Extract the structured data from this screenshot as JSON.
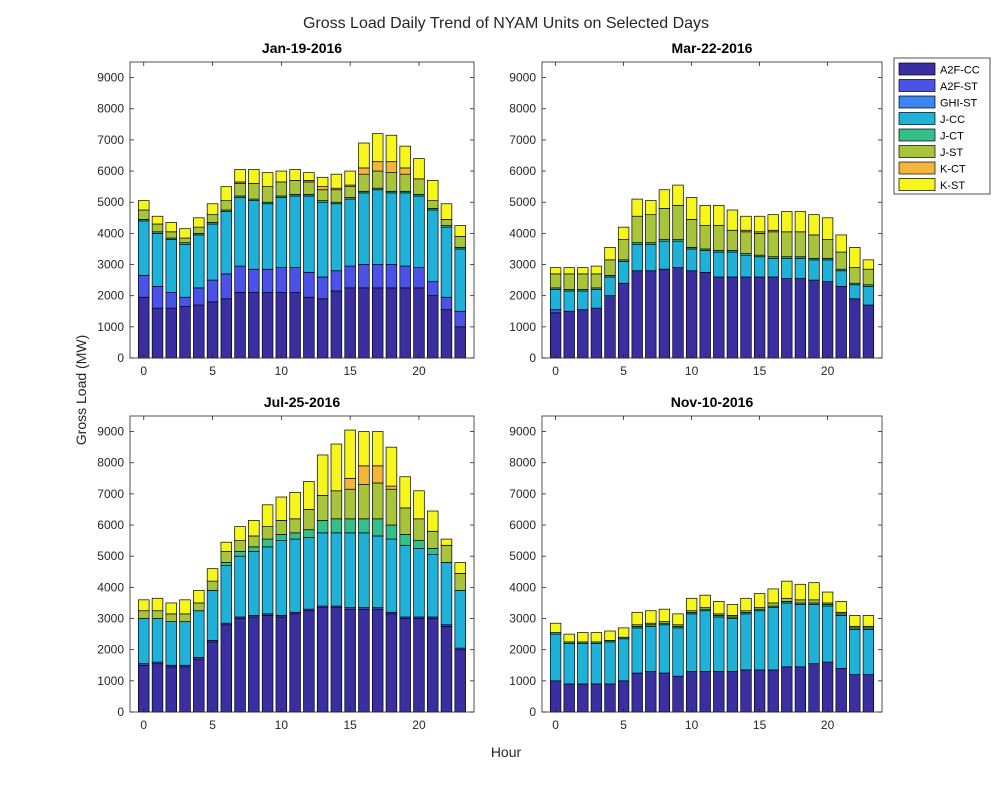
{
  "figure": {
    "title": "Gross Load Daily Trend of NYAM Units on Selected Days",
    "xlabel": "Hour",
    "ylabel": "Gross Load (MW)"
  },
  "legend": {
    "placement": "outside-right",
    "entries": [
      {
        "name": "A2F-CC",
        "color": "#3a2fa0"
      },
      {
        "name": "A2F-ST",
        "color": "#4a52e8"
      },
      {
        "name": "GHI-ST",
        "color": "#3b86f0"
      },
      {
        "name": "J-CC",
        "color": "#1fb1d8"
      },
      {
        "name": "J-CT",
        "color": "#35c08a"
      },
      {
        "name": "J-ST",
        "color": "#a8c43a"
      },
      {
        "name": "K-CT",
        "color": "#f4b63a"
      },
      {
        "name": "K-ST",
        "color": "#f6f51c"
      }
    ]
  },
  "chart_data": [
    {
      "type": "bar",
      "stacked": true,
      "title": "Jan-19-2016",
      "x": [
        0,
        1,
        2,
        3,
        4,
        5,
        6,
        7,
        8,
        9,
        10,
        11,
        12,
        13,
        14,
        15,
        16,
        17,
        18,
        19,
        20,
        21,
        22,
        23
      ],
      "xticks": [
        0,
        5,
        10,
        15,
        20
      ],
      "xlim": [
        -1,
        24
      ],
      "ylim": [
        0,
        9500
      ],
      "yticks": [
        0,
        1000,
        2000,
        3000,
        4000,
        5000,
        6000,
        7000,
        8000,
        9000
      ],
      "series": [
        {
          "name": "A2F-CC",
          "values": [
            1950,
            1600,
            1600,
            1650,
            1700,
            1800,
            1900,
            2100,
            2100,
            2100,
            2100,
            2100,
            1950,
            1900,
            2150,
            2250,
            2250,
            2250,
            2250,
            2250,
            2250,
            2000,
            1550,
            1000
          ]
        },
        {
          "name": "A2F-ST",
          "values": [
            700,
            700,
            500,
            300,
            550,
            700,
            800,
            850,
            750,
            750,
            800,
            800,
            800,
            700,
            650,
            700,
            750,
            750,
            750,
            700,
            650,
            450,
            400,
            500
          ]
        },
        {
          "name": "GHI-ST",
          "values": [
            0,
            0,
            0,
            0,
            0,
            0,
            0,
            0,
            0,
            0,
            0,
            0,
            0,
            0,
            0,
            0,
            0,
            0,
            0,
            0,
            0,
            0,
            0,
            0
          ]
        },
        {
          "name": "J-CC",
          "values": [
            1750,
            1700,
            1700,
            1700,
            1700,
            1800,
            2000,
            2200,
            2200,
            2100,
            2250,
            2300,
            2450,
            2400,
            2150,
            2150,
            2300,
            2400,
            2300,
            2350,
            2300,
            2300,
            2250,
            2000
          ]
        },
        {
          "name": "J-CT",
          "values": [
            50,
            50,
            50,
            50,
            50,
            50,
            50,
            50,
            50,
            50,
            50,
            50,
            50,
            50,
            50,
            50,
            50,
            50,
            50,
            50,
            50,
            50,
            50,
            50
          ]
        },
        {
          "name": "J-ST",
          "values": [
            300,
            250,
            200,
            150,
            200,
            250,
            300,
            400,
            500,
            500,
            450,
            450,
            400,
            350,
            400,
            350,
            550,
            550,
            600,
            550,
            500,
            250,
            200,
            350
          ]
        },
        {
          "name": "K-CT",
          "values": [
            0,
            0,
            0,
            0,
            0,
            0,
            0,
            50,
            0,
            0,
            0,
            0,
            50,
            100,
            50,
            50,
            200,
            300,
            350,
            200,
            0,
            0,
            0,
            0
          ]
        },
        {
          "name": "K-ST",
          "values": [
            300,
            250,
            300,
            300,
            300,
            350,
            450,
            400,
            450,
            450,
            350,
            350,
            250,
            300,
            450,
            450,
            800,
            900,
            850,
            700,
            650,
            650,
            500,
            350
          ]
        }
      ]
    },
    {
      "type": "bar",
      "stacked": true,
      "title": "Mar-22-2016",
      "x": [
        0,
        1,
        2,
        3,
        4,
        5,
        6,
        7,
        8,
        9,
        10,
        11,
        12,
        13,
        14,
        15,
        16,
        17,
        18,
        19,
        20,
        21,
        22,
        23
      ],
      "xticks": [
        0,
        5,
        10,
        15,
        20
      ],
      "xlim": [
        -1,
        24
      ],
      "ylim": [
        0,
        9500
      ],
      "yticks": [
        0,
        1000,
        2000,
        3000,
        4000,
        5000,
        6000,
        7000,
        8000,
        9000
      ],
      "series": [
        {
          "name": "A2F-CC",
          "values": [
            1450,
            1500,
            1550,
            1600,
            2000,
            2400,
            2800,
            2800,
            2850,
            2900,
            2800,
            2750,
            2600,
            2600,
            2600,
            2600,
            2600,
            2550,
            2550,
            2500,
            2450,
            2300,
            1900,
            1700
          ]
        },
        {
          "name": "A2F-ST",
          "values": [
            100,
            0,
            0,
            0,
            0,
            0,
            0,
            0,
            0,
            0,
            0,
            0,
            0,
            0,
            0,
            0,
            0,
            0,
            0,
            0,
            0,
            0,
            0,
            0
          ]
        },
        {
          "name": "GHI-ST",
          "values": [
            0,
            0,
            0,
            0,
            0,
            0,
            0,
            0,
            0,
            0,
            0,
            0,
            0,
            0,
            0,
            0,
            0,
            0,
            0,
            0,
            0,
            0,
            0,
            0
          ]
        },
        {
          "name": "J-CC",
          "values": [
            650,
            650,
            600,
            600,
            600,
            700,
            850,
            850,
            900,
            850,
            700,
            700,
            800,
            800,
            700,
            650,
            600,
            650,
            650,
            650,
            700,
            500,
            450,
            600
          ]
        },
        {
          "name": "J-CT",
          "values": [
            50,
            50,
            50,
            50,
            50,
            50,
            50,
            50,
            50,
            50,
            50,
            50,
            50,
            50,
            50,
            50,
            50,
            50,
            50,
            50,
            50,
            50,
            50,
            50
          ]
        },
        {
          "name": "J-ST",
          "values": [
            450,
            500,
            500,
            450,
            500,
            650,
            850,
            900,
            1000,
            1100,
            900,
            750,
            800,
            650,
            700,
            700,
            800,
            800,
            800,
            750,
            600,
            550,
            500,
            500
          ]
        },
        {
          "name": "K-CT",
          "values": [
            0,
            0,
            0,
            0,
            0,
            0,
            0,
            0,
            0,
            0,
            0,
            0,
            0,
            0,
            50,
            50,
            50,
            0,
            0,
            0,
            0,
            0,
            0,
            0
          ]
        },
        {
          "name": "K-ST",
          "values": [
            200,
            200,
            200,
            250,
            400,
            400,
            550,
            450,
            600,
            650,
            700,
            650,
            650,
            650,
            450,
            500,
            500,
            650,
            650,
            650,
            700,
            550,
            650,
            300
          ]
        }
      ]
    },
    {
      "type": "bar",
      "stacked": true,
      "title": "Jul-25-2016",
      "x": [
        0,
        1,
        2,
        3,
        4,
        5,
        6,
        7,
        8,
        9,
        10,
        11,
        12,
        13,
        14,
        15,
        16,
        17,
        18,
        19,
        20,
        21,
        22,
        23
      ],
      "xticks": [
        0,
        5,
        10,
        15,
        20
      ],
      "xlim": [
        -1,
        24
      ],
      "ylim": [
        0,
        9500
      ],
      "yticks": [
        0,
        1000,
        2000,
        3000,
        4000,
        5000,
        6000,
        7000,
        8000,
        9000
      ],
      "series": [
        {
          "name": "A2F-CC",
          "values": [
            1500,
            1550,
            1450,
            1450,
            1700,
            2250,
            2800,
            3000,
            3050,
            3100,
            3050,
            3150,
            3250,
            3350,
            3350,
            3300,
            3300,
            3300,
            3150,
            3000,
            3000,
            3000,
            2750,
            2000
          ]
        },
        {
          "name": "A2F-ST",
          "values": [
            50,
            50,
            50,
            50,
            50,
            50,
            50,
            50,
            50,
            50,
            50,
            50,
            50,
            50,
            50,
            50,
            50,
            50,
            50,
            50,
            50,
            50,
            50,
            50
          ]
        },
        {
          "name": "GHI-ST",
          "values": [
            0,
            0,
            0,
            0,
            0,
            0,
            0,
            0,
            0,
            0,
            0,
            0,
            0,
            0,
            0,
            0,
            0,
            0,
            0,
            0,
            0,
            0,
            0,
            0
          ]
        },
        {
          "name": "J-CC",
          "values": [
            1450,
            1400,
            1400,
            1400,
            1500,
            1600,
            1850,
            1950,
            2050,
            2150,
            2400,
            2350,
            2300,
            2350,
            2350,
            2400,
            2400,
            2300,
            2350,
            2300,
            2200,
            2000,
            2000,
            1850
          ]
        },
        {
          "name": "J-CT",
          "values": [
            0,
            0,
            0,
            0,
            0,
            0,
            100,
            150,
            150,
            250,
            200,
            200,
            250,
            400,
            450,
            450,
            450,
            550,
            450,
            350,
            250,
            200,
            0,
            0
          ]
        },
        {
          "name": "J-ST",
          "values": [
            250,
            250,
            250,
            250,
            250,
            300,
            350,
            350,
            350,
            400,
            450,
            450,
            650,
            800,
            900,
            950,
            1100,
            1150,
            1150,
            850,
            700,
            550,
            550,
            550
          ]
        },
        {
          "name": "K-CT",
          "values": [
            0,
            0,
            0,
            0,
            0,
            0,
            0,
            0,
            0,
            0,
            0,
            0,
            0,
            0,
            0,
            350,
            600,
            550,
            100,
            0,
            0,
            0,
            0,
            0
          ]
        },
        {
          "name": "K-ST",
          "values": [
            350,
            400,
            350,
            450,
            400,
            400,
            300,
            450,
            500,
            700,
            750,
            850,
            900,
            1300,
            1500,
            1550,
            1100,
            1100,
            1250,
            1000,
            900,
            650,
            200,
            350
          ]
        }
      ]
    },
    {
      "type": "bar",
      "stacked": true,
      "title": "Nov-10-2016",
      "x": [
        0,
        1,
        2,
        3,
        4,
        5,
        6,
        7,
        8,
        9,
        10,
        11,
        12,
        13,
        14,
        15,
        16,
        17,
        18,
        19,
        20,
        21,
        22,
        23
      ],
      "xticks": [
        0,
        5,
        10,
        15,
        20
      ],
      "xlim": [
        -1,
        24
      ],
      "ylim": [
        0,
        9500
      ],
      "yticks": [
        0,
        1000,
        2000,
        3000,
        4000,
        5000,
        6000,
        7000,
        8000,
        9000
      ],
      "series": [
        {
          "name": "A2F-CC",
          "values": [
            1000,
            900,
            900,
            900,
            900,
            1000,
            1250,
            1300,
            1250,
            1150,
            1300,
            1300,
            1300,
            1300,
            1350,
            1350,
            1350,
            1450,
            1450,
            1550,
            1600,
            1400,
            1200,
            1200
          ]
        },
        {
          "name": "A2F-ST",
          "values": [
            0,
            0,
            0,
            0,
            0,
            0,
            0,
            0,
            0,
            0,
            0,
            0,
            0,
            0,
            0,
            0,
            0,
            0,
            0,
            0,
            0,
            0,
            0,
            0
          ]
        },
        {
          "name": "GHI-ST",
          "values": [
            0,
            0,
            0,
            0,
            0,
            0,
            0,
            0,
            0,
            0,
            0,
            0,
            0,
            0,
            0,
            0,
            0,
            0,
            0,
            0,
            0,
            0,
            0,
            0
          ]
        },
        {
          "name": "J-CC",
          "values": [
            1500,
            1300,
            1300,
            1300,
            1350,
            1350,
            1450,
            1450,
            1550,
            1550,
            1850,
            1950,
            1750,
            1700,
            1800,
            1900,
            2000,
            2050,
            2000,
            1900,
            1800,
            1700,
            1450,
            1450
          ]
        },
        {
          "name": "J-CT",
          "values": [
            50,
            50,
            50,
            50,
            50,
            50,
            50,
            50,
            50,
            50,
            50,
            50,
            50,
            50,
            50,
            50,
            50,
            50,
            50,
            50,
            50,
            50,
            50,
            50
          ]
        },
        {
          "name": "J-ST",
          "values": [
            0,
            0,
            0,
            0,
            0,
            0,
            50,
            50,
            50,
            50,
            50,
            50,
            50,
            50,
            50,
            50,
            100,
            100,
            100,
            100,
            50,
            50,
            50,
            50
          ]
        },
        {
          "name": "K-CT",
          "values": [
            0,
            0,
            0,
            0,
            0,
            0,
            0,
            0,
            0,
            0,
            0,
            0,
            0,
            0,
            0,
            0,
            0,
            0,
            0,
            0,
            0,
            0,
            0,
            0
          ]
        },
        {
          "name": "K-ST",
          "values": [
            300,
            250,
            300,
            300,
            300,
            300,
            400,
            400,
            400,
            350,
            400,
            400,
            400,
            350,
            400,
            450,
            450,
            550,
            500,
            550,
            350,
            350,
            350,
            350
          ]
        }
      ]
    }
  ]
}
